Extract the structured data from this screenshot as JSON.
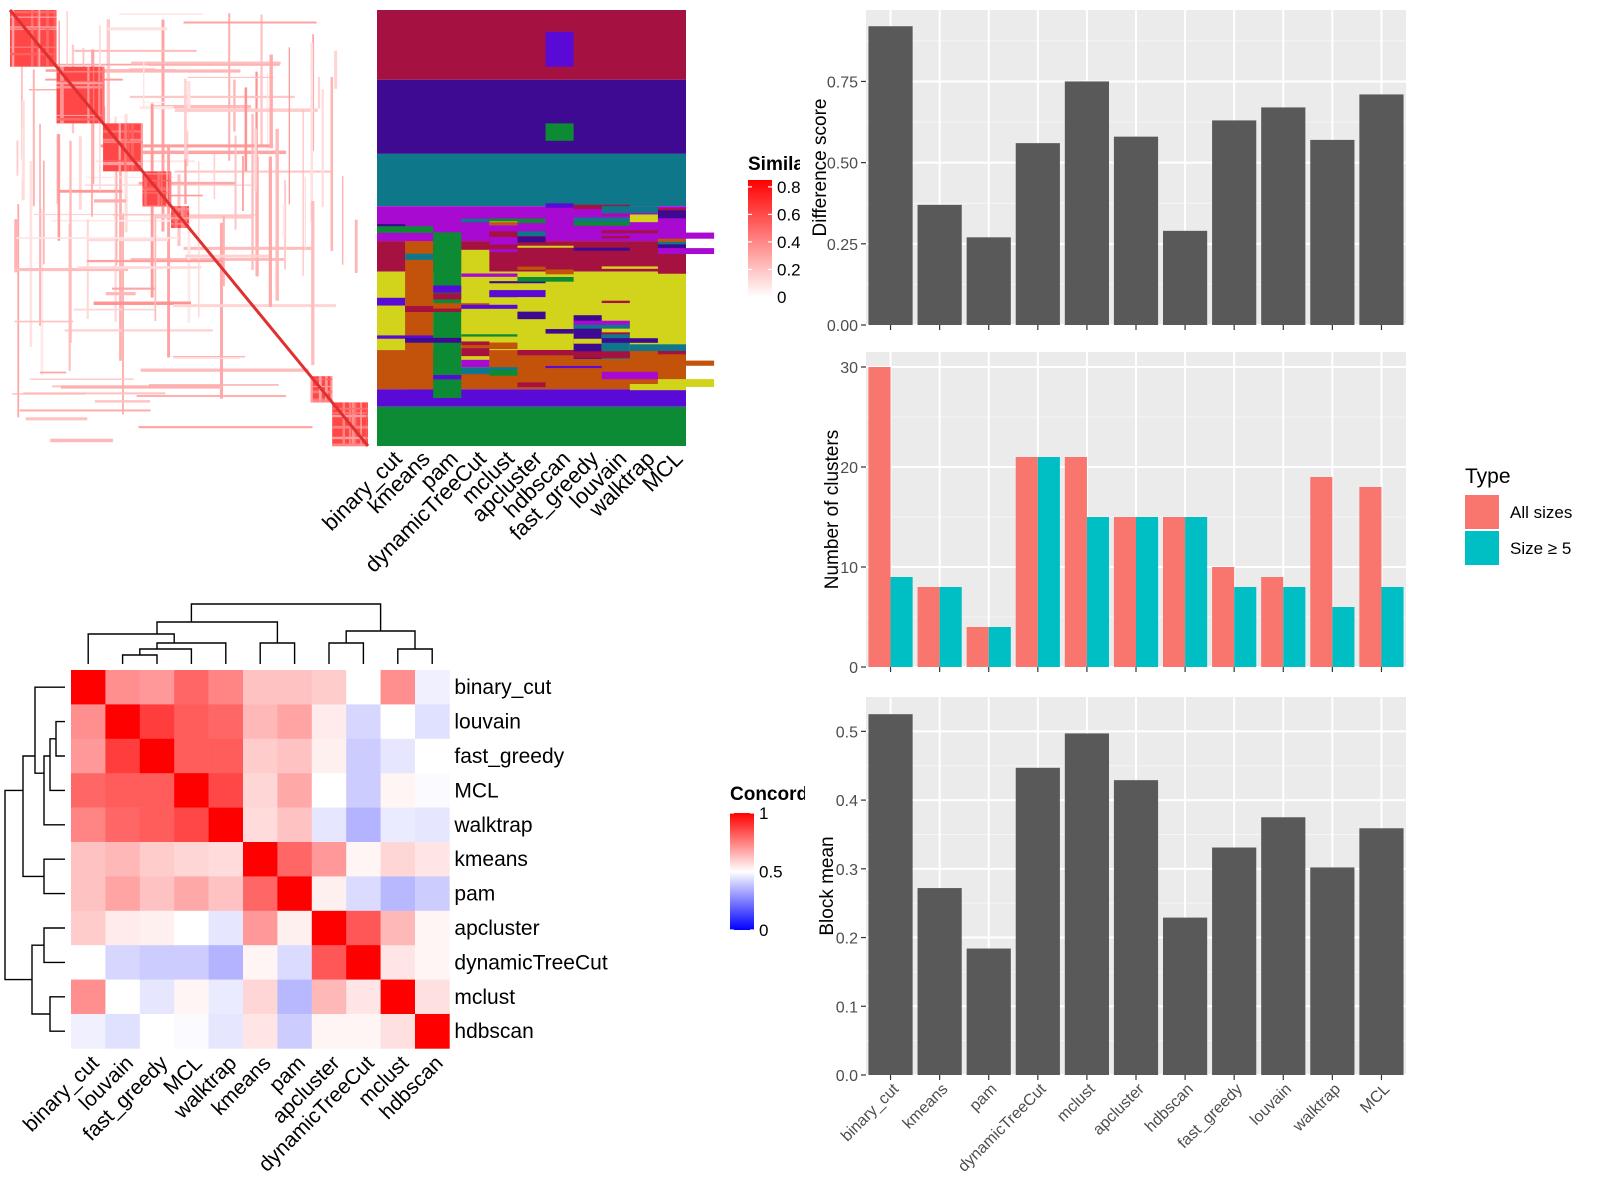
{
  "chart_data": [
    {
      "type": "heatmap",
      "panel": "similarity",
      "legend_title": "Similarity",
      "legend_ticks": [
        "0.8",
        "0.6",
        "0.4",
        "0.2",
        "0"
      ],
      "legend_ticks_val": [
        0.8,
        0.6,
        0.4,
        0.2,
        0
      ],
      "colors": {
        "high": "#ff0000",
        "low": "#ffffff"
      },
      "diagonal_blocks": [
        {
          "from": 0.0,
          "to": 0.13
        },
        {
          "from": 0.13,
          "to": 0.26
        },
        {
          "from": 0.26,
          "to": 0.37
        },
        {
          "from": 0.37,
          "to": 0.45
        },
        {
          "from": 0.45,
          "to": 0.5
        },
        {
          "from": 0.84,
          "to": 0.9
        },
        {
          "from": 0.9,
          "to": 1.0
        }
      ]
    },
    {
      "type": "heatmap",
      "panel": "cluster_assignments",
      "columns": [
        "binary_cut",
        "kmeans",
        "pam",
        "dynamicTreeCut",
        "mclust",
        "apcluster",
        "hdbscan",
        "fast_greedy",
        "louvain",
        "walktrap",
        "MCL"
      ],
      "palette": [
        "#a51140",
        "#3d0a91",
        "#0e788a",
        "#c3520b",
        "#0c8b34",
        "#d1d41a",
        "#a80ad2",
        "#5a0ad6"
      ]
    },
    {
      "type": "heatmap",
      "panel": "concordance",
      "legend_title": "Concordance",
      "legend_ticks": [
        "1",
        "0.5",
        "0"
      ],
      "legend_ticks_val": [
        1,
        0.5,
        0
      ],
      "order": [
        "binary_cut",
        "louvain",
        "fast_greedy",
        "MCL",
        "walktrap",
        "kmeans",
        "pam",
        "apcluster",
        "dynamicTreeCut",
        "mclust",
        "hdbscan"
      ],
      "matrix": [
        [
          1.0,
          0.72,
          0.7,
          0.8,
          0.74,
          0.62,
          0.62,
          0.6,
          0.5,
          0.72,
          0.47
        ],
        [
          0.72,
          1.0,
          0.88,
          0.82,
          0.8,
          0.64,
          0.68,
          0.54,
          0.42,
          0.5,
          0.44
        ],
        [
          0.7,
          0.88,
          1.0,
          0.82,
          0.82,
          0.6,
          0.62,
          0.53,
          0.4,
          0.45,
          0.5
        ],
        [
          0.8,
          0.82,
          0.82,
          1.0,
          0.86,
          0.58,
          0.67,
          0.5,
          0.4,
          0.52,
          0.49
        ],
        [
          0.74,
          0.8,
          0.82,
          0.86,
          1.0,
          0.57,
          0.62,
          0.45,
          0.35,
          0.46,
          0.45
        ],
        [
          0.62,
          0.64,
          0.6,
          0.58,
          0.57,
          1.0,
          0.8,
          0.7,
          0.52,
          0.58,
          0.55
        ],
        [
          0.62,
          0.68,
          0.62,
          0.67,
          0.62,
          0.8,
          1.0,
          0.53,
          0.43,
          0.36,
          0.4
        ],
        [
          0.6,
          0.54,
          0.53,
          0.5,
          0.45,
          0.7,
          0.53,
          1.0,
          0.83,
          0.64,
          0.52
        ],
        [
          0.5,
          0.42,
          0.4,
          0.4,
          0.35,
          0.52,
          0.43,
          0.83,
          1.0,
          0.55,
          0.52
        ],
        [
          0.72,
          0.5,
          0.45,
          0.52,
          0.46,
          0.58,
          0.36,
          0.64,
          0.55,
          1.0,
          0.56
        ],
        [
          0.47,
          0.44,
          0.5,
          0.49,
          0.45,
          0.55,
          0.4,
          0.52,
          0.52,
          0.56,
          1.0
        ]
      ],
      "colors": {
        "high": "#ff0000",
        "mid": "#ffffff",
        "low": "#0000ff"
      }
    },
    {
      "type": "bar",
      "panel": "difference_score",
      "categories": [
        "binary_cut",
        "kmeans",
        "pam",
        "dynamicTreeCut",
        "mclust",
        "apcluster",
        "hdbscan",
        "fast_greedy",
        "louvain",
        "walktrap",
        "MCL"
      ],
      "values": [
        0.92,
        0.37,
        0.27,
        0.56,
        0.75,
        0.58,
        0.29,
        0.63,
        0.67,
        0.57,
        0.71
      ],
      "ylabel": "Difference score",
      "ylim": [
        0,
        0.97
      ],
      "yticks": [
        "0.00",
        "0.25",
        "0.50",
        "0.75"
      ],
      "yticks_val": [
        0,
        0.25,
        0.5,
        0.75
      ],
      "grid": true,
      "colors": {
        "bar": "#595959",
        "panel": "#ebebeb"
      }
    },
    {
      "type": "bar",
      "panel": "number_of_clusters",
      "categories": [
        "binary_cut",
        "kmeans",
        "pam",
        "dynamicTreeCut",
        "mclust",
        "apcluster",
        "hdbscan",
        "fast_greedy",
        "louvain",
        "walktrap",
        "MCL"
      ],
      "series": [
        {
          "name": "All sizes",
          "values": [
            30,
            8,
            4,
            21,
            21,
            15,
            15,
            10,
            9,
            19,
            18
          ]
        },
        {
          "name": "Size ≥ 5",
          "values": [
            9,
            8,
            4,
            21,
            15,
            15,
            15,
            8,
            8,
            6,
            8
          ]
        }
      ],
      "ylabel": "Number of clusters",
      "ylim": [
        0,
        31.5
      ],
      "yticks": [
        "0",
        "10",
        "20",
        "30"
      ],
      "yticks_val": [
        0,
        10,
        20,
        30
      ],
      "legend_title": "Type",
      "legend_position": "right",
      "grid": true,
      "colors": {
        "All sizes": "#f8766d",
        "Size ≥ 5": "#00bfc4",
        "panel": "#ebebeb"
      }
    },
    {
      "type": "bar",
      "panel": "block_mean",
      "categories": [
        "binary_cut",
        "kmeans",
        "pam",
        "dynamicTreeCut",
        "mclust",
        "apcluster",
        "hdbscan",
        "fast_greedy",
        "louvain",
        "walktrap",
        "MCL"
      ],
      "values": [
        0.525,
        0.272,
        0.184,
        0.447,
        0.497,
        0.429,
        0.229,
        0.331,
        0.375,
        0.302,
        0.359
      ],
      "ylabel": "Block mean",
      "ylim": [
        0,
        0.55
      ],
      "yticks": [
        "0.0",
        "0.1",
        "0.2",
        "0.3",
        "0.4",
        "0.5"
      ],
      "yticks_val": [
        0,
        0.1,
        0.2,
        0.3,
        0.4,
        0.5
      ],
      "grid": true,
      "colors": {
        "bar": "#595959",
        "panel": "#ebebeb"
      }
    }
  ]
}
